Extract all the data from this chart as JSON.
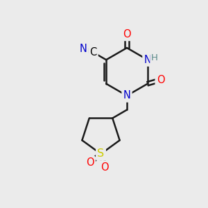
{
  "bg_color": "#ebebeb",
  "atom_colors": {
    "C": "#000000",
    "N": "#0000cc",
    "O": "#ff0000",
    "S": "#cccc00",
    "H": "#5a8a8a"
  },
  "bond_color": "#1a1a1a",
  "figsize": [
    3.0,
    3.0
  ],
  "dpi": 100
}
